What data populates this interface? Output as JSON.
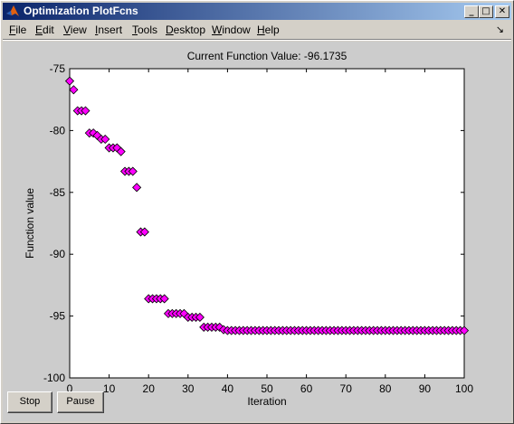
{
  "window": {
    "title": "Optimization PlotFcns",
    "minimize_glyph": "_",
    "maximize_glyph": "□",
    "close_glyph": "✕",
    "app_icon": "matlab-logo-icon"
  },
  "menu": {
    "items": [
      {
        "label": "File",
        "key": "F",
        "rest": "ile"
      },
      {
        "label": "Edit",
        "key": "E",
        "rest": "dit"
      },
      {
        "label": "View",
        "key": "V",
        "rest": "iew"
      },
      {
        "label": "Insert",
        "key": "I",
        "rest": "nsert"
      },
      {
        "label": "Tools",
        "key": "T",
        "rest": "ools"
      },
      {
        "label": "Desktop",
        "key": "D",
        "rest": "esktop"
      },
      {
        "label": "Window",
        "key": "W",
        "rest": "indow"
      },
      {
        "label": "Help",
        "key": "H",
        "rest": "elp"
      }
    ],
    "dock_arrow": "↘"
  },
  "buttons": {
    "stop": "Stop",
    "pause": "Pause"
  },
  "chart_data": {
    "type": "scatter",
    "title": "Current Function Value: -96.1735",
    "xlabel": "Iteration",
    "ylabel": "Function value",
    "xlim": [
      0,
      100
    ],
    "ylim": [
      -100,
      -75
    ],
    "xticks": [
      0,
      10,
      20,
      30,
      40,
      50,
      60,
      70,
      80,
      90,
      100
    ],
    "yticks": [
      -75,
      -80,
      -85,
      -90,
      -95,
      -100
    ],
    "grid": false,
    "marker": "diamond",
    "colors": {
      "marker_fill": "#ff00ff",
      "marker_edge": "#000000",
      "plot_bg": "#ffffff"
    },
    "points": [
      [
        0,
        -76.0
      ],
      [
        1,
        -76.7
      ],
      [
        2,
        -78.4
      ],
      [
        3,
        -78.4
      ],
      [
        4,
        -78.4
      ],
      [
        5,
        -80.2
      ],
      [
        6,
        -80.2
      ],
      [
        7,
        -80.4
      ],
      [
        8,
        -80.7
      ],
      [
        9,
        -80.7
      ],
      [
        10,
        -81.4
      ],
      [
        11,
        -81.4
      ],
      [
        12,
        -81.4
      ],
      [
        13,
        -81.7
      ],
      [
        14,
        -83.3
      ],
      [
        15,
        -83.3
      ],
      [
        16,
        -83.3
      ],
      [
        17,
        -84.6
      ],
      [
        18,
        -88.2
      ],
      [
        19,
        -88.2
      ],
      [
        20,
        -93.6
      ],
      [
        21,
        -93.6
      ],
      [
        22,
        -93.6
      ],
      [
        23,
        -93.6
      ],
      [
        24,
        -93.6
      ],
      [
        25,
        -94.8
      ],
      [
        26,
        -94.8
      ],
      [
        27,
        -94.8
      ],
      [
        28,
        -94.8
      ],
      [
        29,
        -94.8
      ],
      [
        30,
        -95.1
      ],
      [
        31,
        -95.1
      ],
      [
        32,
        -95.1
      ],
      [
        33,
        -95.1
      ],
      [
        34,
        -95.9
      ],
      [
        35,
        -95.9
      ],
      [
        36,
        -95.9
      ],
      [
        37,
        -95.9
      ],
      [
        38,
        -95.9
      ],
      [
        39,
        -96.1
      ],
      [
        40,
        -96.17
      ],
      [
        41,
        -96.17
      ],
      [
        42,
        -96.17
      ],
      [
        43,
        -96.17
      ],
      [
        44,
        -96.17
      ],
      [
        45,
        -96.17
      ],
      [
        46,
        -96.17
      ],
      [
        47,
        -96.17
      ],
      [
        48,
        -96.17
      ],
      [
        49,
        -96.17
      ],
      [
        50,
        -96.17
      ],
      [
        51,
        -96.17
      ],
      [
        52,
        -96.17
      ],
      [
        53,
        -96.17
      ],
      [
        54,
        -96.17
      ],
      [
        55,
        -96.17
      ],
      [
        56,
        -96.17
      ],
      [
        57,
        -96.17
      ],
      [
        58,
        -96.17
      ],
      [
        59,
        -96.17
      ],
      [
        60,
        -96.17
      ],
      [
        61,
        -96.17
      ],
      [
        62,
        -96.17
      ],
      [
        63,
        -96.17
      ],
      [
        64,
        -96.17
      ],
      [
        65,
        -96.17
      ],
      [
        66,
        -96.17
      ],
      [
        67,
        -96.17
      ],
      [
        68,
        -96.17
      ],
      [
        69,
        -96.17
      ],
      [
        70,
        -96.17
      ],
      [
        71,
        -96.17
      ],
      [
        72,
        -96.17
      ],
      [
        73,
        -96.17
      ],
      [
        74,
        -96.17
      ],
      [
        75,
        -96.17
      ],
      [
        76,
        -96.17
      ],
      [
        77,
        -96.17
      ],
      [
        78,
        -96.17
      ],
      [
        79,
        -96.17
      ],
      [
        80,
        -96.17
      ],
      [
        81,
        -96.17
      ],
      [
        82,
        -96.17
      ],
      [
        83,
        -96.17
      ],
      [
        84,
        -96.17
      ],
      [
        85,
        -96.17
      ],
      [
        86,
        -96.17
      ],
      [
        87,
        -96.17
      ],
      [
        88,
        -96.17
      ],
      [
        89,
        -96.17
      ],
      [
        90,
        -96.17
      ],
      [
        91,
        -96.17
      ],
      [
        92,
        -96.17
      ],
      [
        93,
        -96.17
      ],
      [
        94,
        -96.17
      ],
      [
        95,
        -96.17
      ],
      [
        96,
        -96.17
      ],
      [
        97,
        -96.17
      ],
      [
        98,
        -96.17
      ],
      [
        99,
        -96.17
      ],
      [
        100,
        -96.17
      ]
    ]
  }
}
